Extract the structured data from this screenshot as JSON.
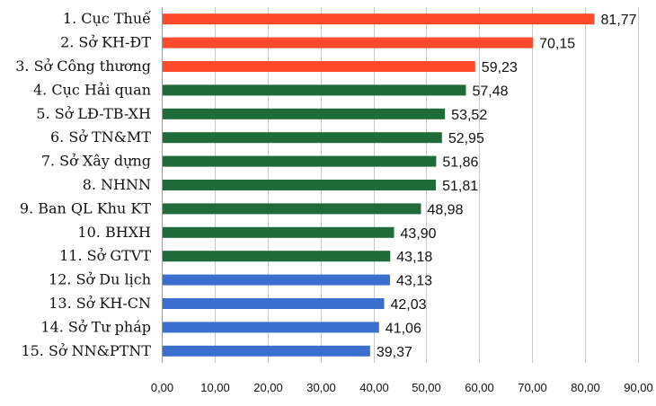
{
  "chart_data": {
    "type": "bar",
    "orientation": "horizontal",
    "categories": [
      "1. Cục Thuế",
      "2. Sở KH-ĐT",
      "3. Sở Công thương",
      "4. Cục Hải quan",
      "5. Sở LĐ-TB-XH",
      "6. Sở TN&MT",
      "7. Sở Xây dựng",
      "8. NHNN",
      "9. Ban QL Khu KT",
      "10. BHXH",
      "11. Sở GTVT",
      "12. Sở Du lịch",
      "13. Sở KH-CN",
      "14. Sở Tư pháp",
      "15. Sở NN&PTNT"
    ],
    "values": [
      81.77,
      70.15,
      59.23,
      57.48,
      53.52,
      52.95,
      51.86,
      51.81,
      48.98,
      43.9,
      43.18,
      43.13,
      42.03,
      41.06,
      39.37
    ],
    "value_labels": [
      "81,77",
      "70,15",
      "59,23",
      "57,48",
      "53,52",
      "52,95",
      "51,86",
      "51,81",
      "48,98",
      "43,90",
      "43,18",
      "43,13",
      "42,03",
      "41,06",
      "39,37"
    ],
    "bar_colors": [
      "#ff4b2b",
      "#ff4b2b",
      "#ff4b2b",
      "#1f6b3a",
      "#1f6b3a",
      "#1f6b3a",
      "#1f6b3a",
      "#1f6b3a",
      "#1f6b3a",
      "#1f6b3a",
      "#1f6b3a",
      "#3a6fd0",
      "#3a6fd0",
      "#3a6fd0",
      "#3a6fd0"
    ],
    "xlim": [
      0,
      90
    ],
    "xticks": [
      0,
      10,
      20,
      30,
      40,
      50,
      60,
      70,
      80,
      90
    ],
    "xtick_labels": [
      "0,00",
      "10,00",
      "20,00",
      "30,00",
      "40,00",
      "50,00",
      "60,00",
      "70,00",
      "80,00",
      "90,00"
    ],
    "grid": true,
    "title": "",
    "xlabel": "",
    "ylabel": ""
  }
}
